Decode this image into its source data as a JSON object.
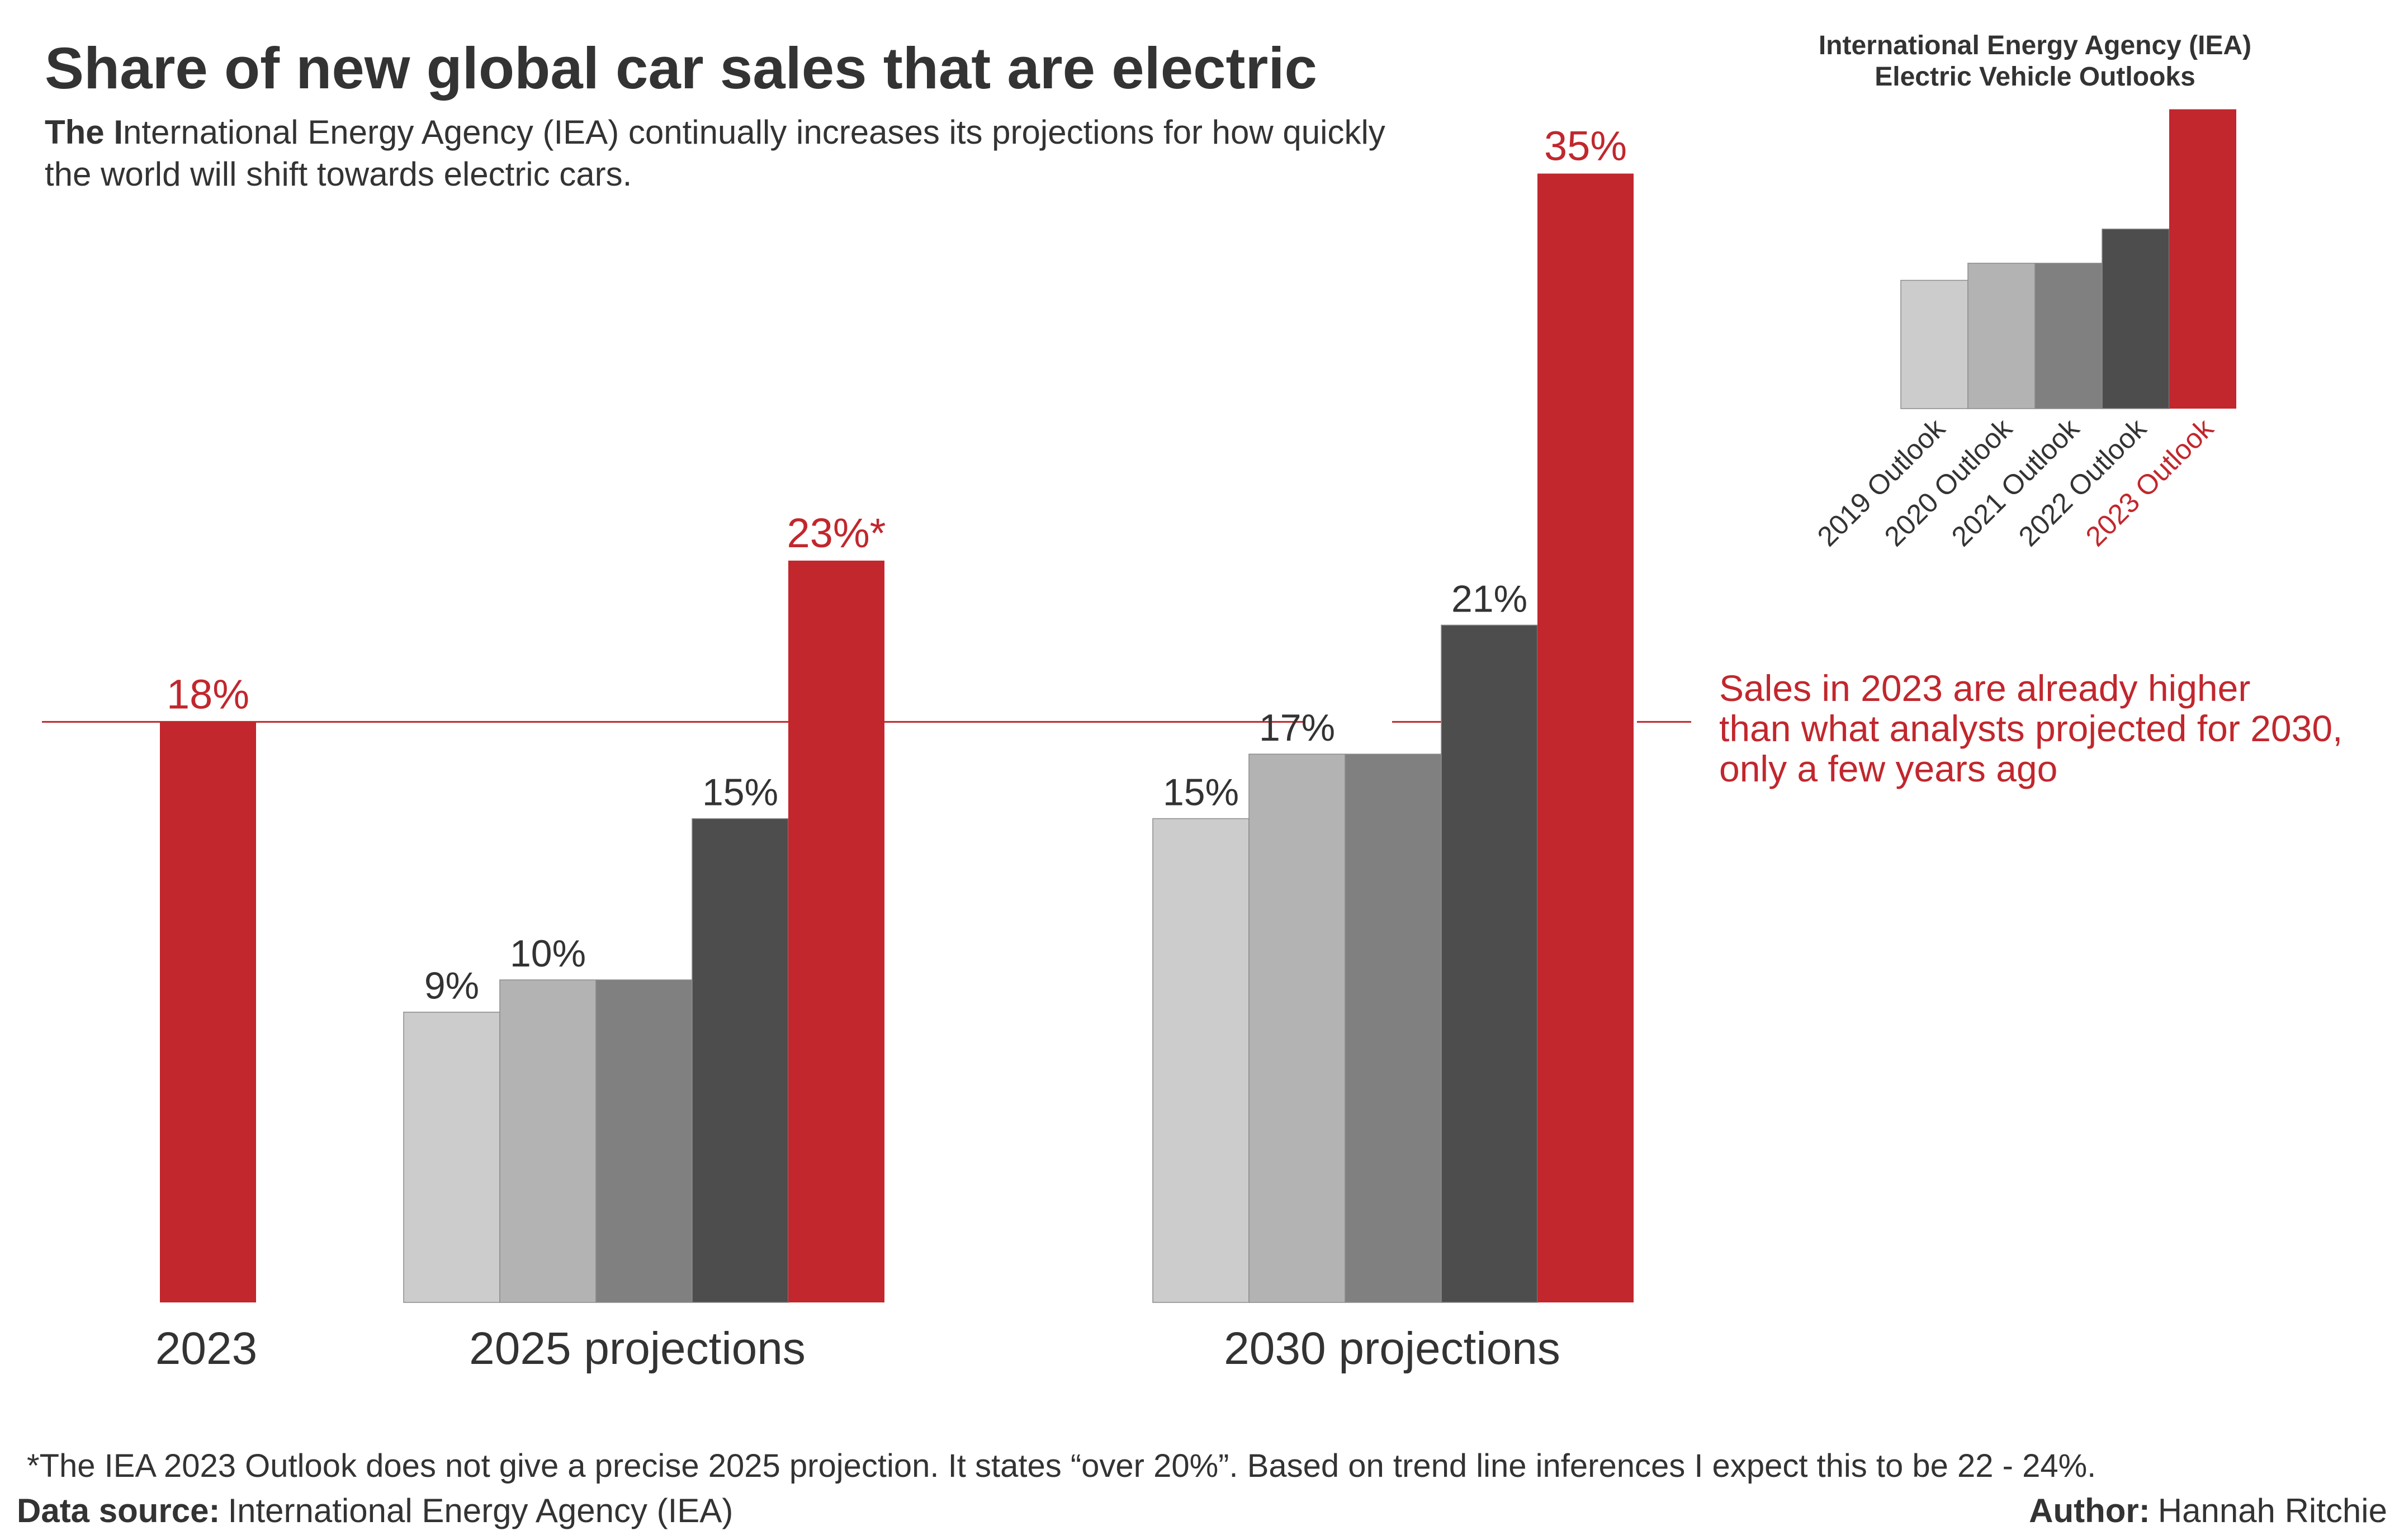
{
  "title": "Share of new global car sales that are electric",
  "subtitle": {
    "bold_lead": "The I",
    "line1_rest": "nternational Energy Agency (IEA) continually increases its projections for how quickly",
    "line2": "the world will shift towards electric cars."
  },
  "colors": {
    "outlook_2019": "#cccccc",
    "outlook_2020": "#b3b3b3",
    "outlook_2021": "#808080",
    "outlook_2022": "#4d4d4d",
    "outlook_2023": "#c1272d",
    "text": "#333333",
    "accent": "#c1272d"
  },
  "chart_data": [
    {
      "type": "bar",
      "title": "Share of new global car sales that are electric",
      "xlabel": "",
      "ylabel": "",
      "ylim": [
        0,
        36
      ],
      "grid": false,
      "groups": [
        {
          "name": "2023",
          "bars": [
            {
              "series": "2023 Outlook",
              "value": 18,
              "label": "18%"
            }
          ]
        },
        {
          "name": "2025 projections",
          "bars": [
            {
              "series": "2019 Outlook",
              "value": 9,
              "label": "9%"
            },
            {
              "series": "2020 Outlook",
              "value": 10,
              "label": "10%"
            },
            {
              "series": "2021 Outlook",
              "value": 10,
              "label": ""
            },
            {
              "series": "2022 Outlook",
              "value": 15,
              "label": "15%"
            },
            {
              "series": "2023 Outlook",
              "value": 23,
              "label": "23%*"
            }
          ]
        },
        {
          "name": "2030 projections",
          "bars": [
            {
              "series": "2019 Outlook",
              "value": 15,
              "label": "15%"
            },
            {
              "series": "2020 Outlook",
              "value": 17,
              "label": "17%"
            },
            {
              "series": "2021 Outlook",
              "value": 17,
              "label": ""
            },
            {
              "series": "2022 Outlook",
              "value": 21,
              "label": "21%"
            },
            {
              "series": "2023 Outlook",
              "value": 35,
              "label": "35%"
            }
          ]
        }
      ],
      "reference_line": {
        "value": 18,
        "annotation": [
          "Sales in 2023 are already higher",
          "than what analysts projected for 2030,",
          "only a few years ago"
        ]
      }
    },
    {
      "type": "bar",
      "title": "International Energy Agency (IEA) Electric Vehicle Outlooks",
      "role": "legend",
      "legend_placement": "top-right",
      "title_lines": [
        "International Energy Agency (IEA)",
        "Electric Vehicle Outlooks"
      ],
      "categories": [
        "2019 Outlook",
        "2020 Outlook",
        "2021 Outlook",
        "2022 Outlook",
        "2023 Outlook"
      ],
      "values": [
        15,
        17,
        17,
        21,
        35
      ]
    }
  ],
  "footnote": "*The IEA 2023 Outlook does not give a precise 2025 projection. It states “over 20%”. Based on trend line inferences I expect this to be 22 - 24%.",
  "source": {
    "label": "Data source:",
    "value": "International Energy Agency (IEA)"
  },
  "author": {
    "label": "Author:",
    "value": "Hannah Ritchie"
  }
}
